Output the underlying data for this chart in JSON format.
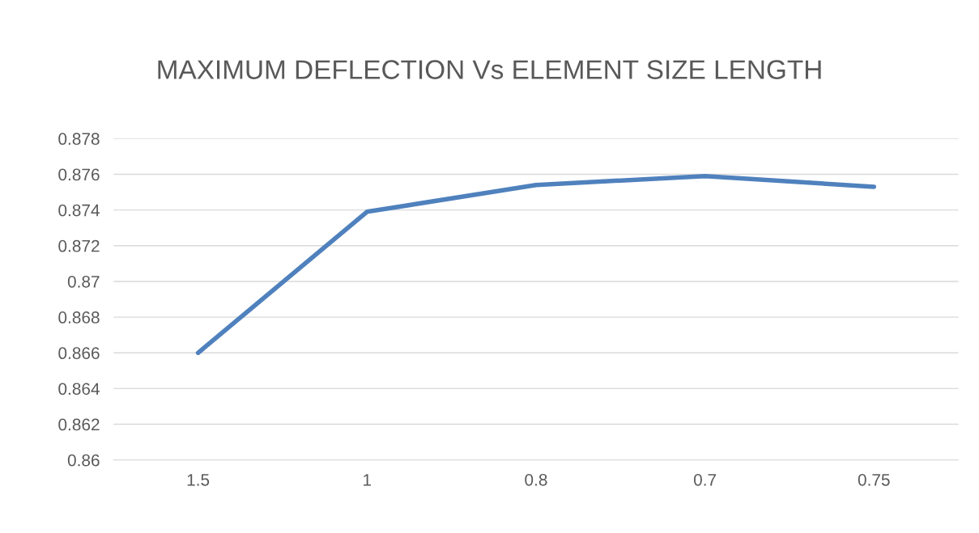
{
  "chart_data": {
    "type": "line",
    "title": "MAXIMUM DEFLECTION Vs ELEMENT SIZE LENGTH",
    "categories": [
      "1.5",
      "1",
      "0.8",
      "0.7",
      "0.75"
    ],
    "series": [
      {
        "color": "#4f81bd",
        "values": [
          0.866,
          0.8739,
          0.8754,
          0.8759,
          0.8753
        ]
      }
    ],
    "ylim": [
      0.86,
      0.878
    ],
    "yticks": [
      0.86,
      0.862,
      0.864,
      0.866,
      0.868,
      0.87,
      0.872,
      0.874,
      0.876,
      0.878
    ],
    "grid": "y",
    "marker": "none",
    "line_style": "solid"
  }
}
